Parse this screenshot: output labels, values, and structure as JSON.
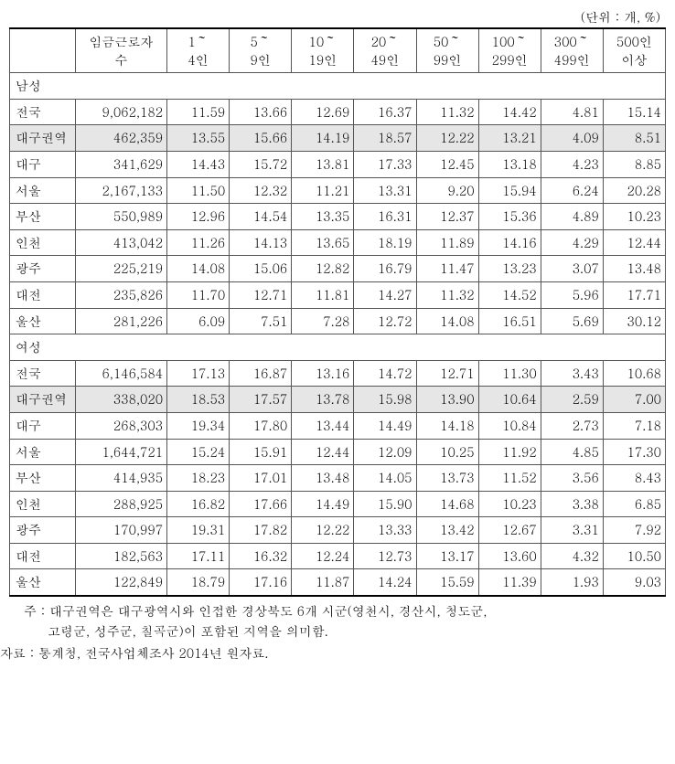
{
  "unit_label": "(단위 : 개, %)",
  "columns": {
    "blank": "",
    "c1": {
      "l1": "임금근로자",
      "l2": "수"
    },
    "c2": {
      "l1": "1～",
      "l2": "4인"
    },
    "c3": {
      "l1": "5～",
      "l2": "9인"
    },
    "c4": {
      "l1": "10～",
      "l2": "19인"
    },
    "c5": {
      "l1": "20～",
      "l2": "49인"
    },
    "c6": {
      "l1": "50～",
      "l2": "99인"
    },
    "c7": {
      "l1": "100～",
      "l2": "299인"
    },
    "c8": {
      "l1": "300～",
      "l2": "499인"
    },
    "c9": {
      "l1": "500인",
      "l2": "이상"
    }
  },
  "sections": [
    {
      "title": "남성",
      "rows": [
        {
          "region": "전국",
          "vals": [
            "9,062,182",
            "11.59",
            "13.66",
            "12.69",
            "16.37",
            "11.32",
            "14.42",
            "4.81",
            "15.14"
          ],
          "shaded": false
        },
        {
          "region": "대구권역",
          "vals": [
            "462,359",
            "13.55",
            "15.66",
            "14.19",
            "18.57",
            "12.22",
            "13.21",
            "4.09",
            "8.51"
          ],
          "shaded": true
        },
        {
          "region": "대구",
          "vals": [
            "341,629",
            "14.43",
            "15.72",
            "13.81",
            "17.33",
            "12.45",
            "13.18",
            "4.23",
            "8.85"
          ],
          "shaded": false
        },
        {
          "region": "서울",
          "vals": [
            "2,167,133",
            "11.50",
            "12.32",
            "11.21",
            "13.31",
            "9.20",
            "15.94",
            "6.24",
            "20.28"
          ],
          "shaded": false
        },
        {
          "region": "부산",
          "vals": [
            "550,989",
            "12.96",
            "14.54",
            "13.35",
            "16.31",
            "12.37",
            "15.36",
            "4.89",
            "10.23"
          ],
          "shaded": false
        },
        {
          "region": "인천",
          "vals": [
            "413,042",
            "11.26",
            "14.13",
            "13.65",
            "18.19",
            "11.89",
            "14.16",
            "4.29",
            "12.44"
          ],
          "shaded": false
        },
        {
          "region": "광주",
          "vals": [
            "225,219",
            "14.08",
            "15.06",
            "12.82",
            "16.79",
            "11.47",
            "13.23",
            "3.07",
            "13.48"
          ],
          "shaded": false
        },
        {
          "region": "대전",
          "vals": [
            "235,826",
            "11.70",
            "12.71",
            "11.81",
            "14.27",
            "11.32",
            "14.52",
            "5.96",
            "17.71"
          ],
          "shaded": false
        },
        {
          "region": "울산",
          "vals": [
            "281,226",
            "6.09",
            "7.51",
            "7.28",
            "12.72",
            "14.08",
            "16.51",
            "5.69",
            "30.12"
          ],
          "shaded": false
        }
      ]
    },
    {
      "title": "여성",
      "rows": [
        {
          "region": "전국",
          "vals": [
            "6,146,584",
            "17.13",
            "16.87",
            "13.16",
            "14.72",
            "12.71",
            "11.30",
            "3.43",
            "10.68"
          ],
          "shaded": false
        },
        {
          "region": "대구권역",
          "vals": [
            "338,020",
            "18.53",
            "17.57",
            "13.78",
            "15.98",
            "13.90",
            "10.64",
            "2.59",
            "7.00"
          ],
          "shaded": true
        },
        {
          "region": "대구",
          "vals": [
            "268,303",
            "19.34",
            "17.80",
            "13.44",
            "14.49",
            "14.18",
            "10.84",
            "2.73",
            "7.18"
          ],
          "shaded": false
        },
        {
          "region": "서울",
          "vals": [
            "1,644,721",
            "15.24",
            "15.91",
            "12.44",
            "12.09",
            "10.25",
            "11.92",
            "4.85",
            "17.30"
          ],
          "shaded": false
        },
        {
          "region": "부산",
          "vals": [
            "414,935",
            "18.23",
            "17.01",
            "13.48",
            "14.05",
            "13.73",
            "11.52",
            "3.56",
            "8.43"
          ],
          "shaded": false
        },
        {
          "region": "인천",
          "vals": [
            "288,925",
            "16.82",
            "17.66",
            "14.49",
            "15.90",
            "14.68",
            "10.23",
            "3.38",
            "6.85"
          ],
          "shaded": false
        },
        {
          "region": "광주",
          "vals": [
            "170,997",
            "19.31",
            "17.82",
            "12.22",
            "13.33",
            "13.42",
            "12.67",
            "3.31",
            "7.92"
          ],
          "shaded": false
        },
        {
          "region": "대전",
          "vals": [
            "182,563",
            "17.11",
            "16.32",
            "12.24",
            "12.73",
            "13.17",
            "13.60",
            "4.32",
            "10.50"
          ],
          "shaded": false
        },
        {
          "region": "울산",
          "vals": [
            "122,849",
            "18.79",
            "17.16",
            "11.87",
            "14.24",
            "15.59",
            "11.39",
            "1.93",
            "9.03"
          ],
          "shaded": false
        }
      ]
    }
  ],
  "note": {
    "line1": "주 : 대구권역은 대구광역시와 인접한 경상북도 6개 시군(영천시, 경산시, 청도군,",
    "line2": "고령군, 성주군, 칠곡군)이 포함된 지역을 의미함."
  },
  "source": "자료 : 통계청, 전국사업체조사 2014년 원자료."
}
